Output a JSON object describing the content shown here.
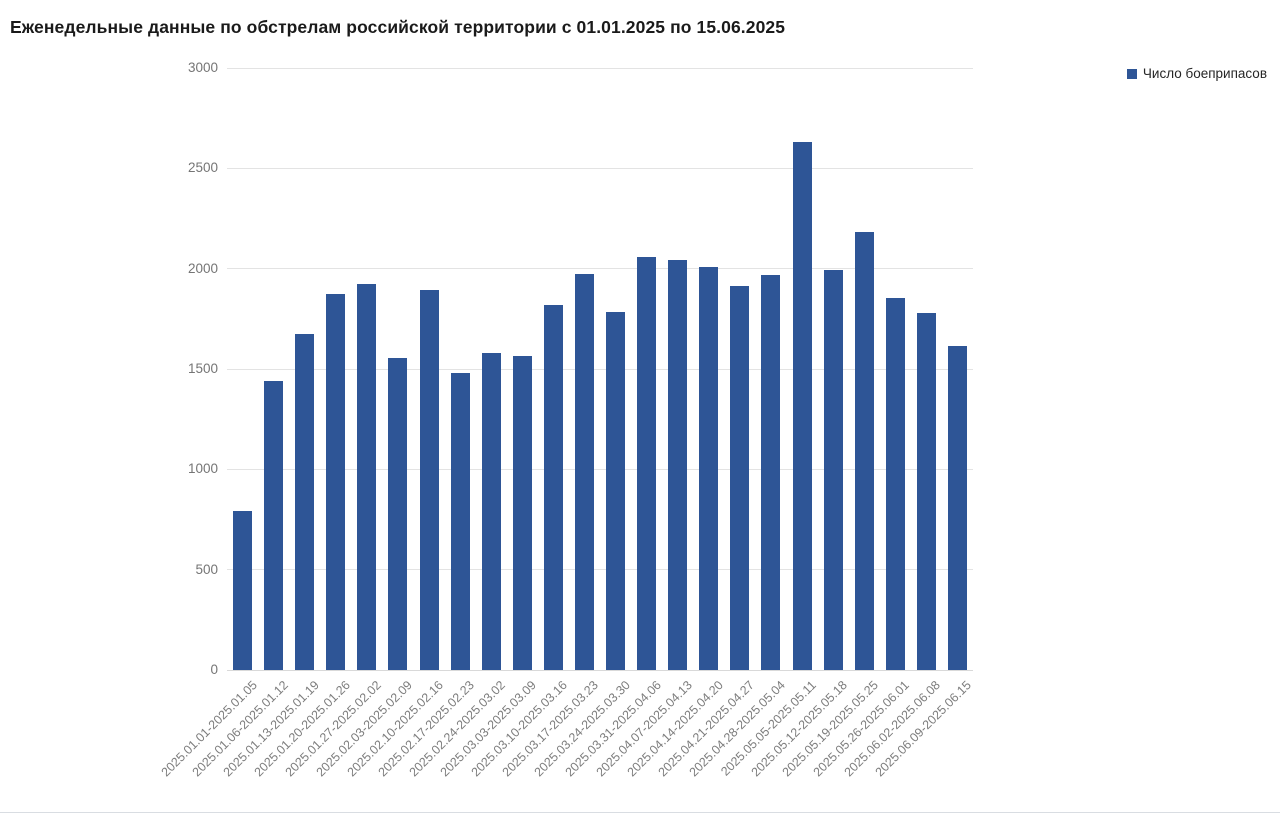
{
  "page": {
    "title": "Еженедельные данные по обстрелам российской территории с 01.01.2025 по 15.06.2025"
  },
  "legend": {
    "label": "Число боеприпасов"
  },
  "colors": {
    "bar": "#2e5596",
    "grid": "#e3e3e3",
    "axis_line": "#d9d9d9",
    "tick_text": "#757575",
    "title_text": "#1a1a1a",
    "legend_text": "#262626",
    "bottom_line": "#d9dde2"
  },
  "chart_data": {
    "type": "bar",
    "title": "Еженедельные данные по обстрелам российской территории с 01.01.2025 по 15.06.2025",
    "xlabel": "",
    "ylabel": "",
    "ylim": [
      0,
      3000
    ],
    "yticks": [
      0,
      500,
      1000,
      1500,
      2000,
      2500,
      3000
    ],
    "grid": true,
    "legend_position": "top-right",
    "series": [
      {
        "name": "Число боеприпасов",
        "values": [
          790,
          1440,
          1675,
          1875,
          1925,
          1555,
          1895,
          1480,
          1580,
          1565,
          1820,
          1975,
          1785,
          2060,
          2045,
          2010,
          1915,
          1970,
          2630,
          1995,
          2185,
          1855,
          1780,
          1615
        ]
      }
    ],
    "categories": [
      "2025.01.01-2025.01.05",
      "2025.01.06-2025.01.12",
      "2025.01.13-2025.01.19",
      "2025.01.20-2025.01.26",
      "2025.01.27-2025.02.02",
      "2025.02.03-2025.02.09",
      "2025.02.10-2025.02.16",
      "2025.02.17-2025.02.23",
      "2025.02.24-2025.03.02",
      "2025.03.03-2025.03.09",
      "2025.03.10-2025.03.16",
      "2025.03.17-2025.03.23",
      "2025.03.24-2025.03.30",
      "2025.03.31-2025.04.06",
      "2025.04.07-2025.04.13",
      "2025.04.14-2025.04.20",
      "2025.04.21-2025.04.27",
      "2025.04.28-2025.05.04",
      "2025.05.05-2025.05.11",
      "2025.05.12-2025.05.18",
      "2025.05.19-2025.05.25",
      "2025.05.26-2025.06.01",
      "2025.06.02-2025.06.08",
      "2025.06.09-2025.06.15"
    ]
  }
}
